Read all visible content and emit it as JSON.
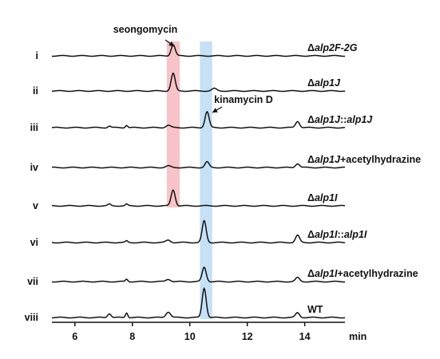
{
  "chart_data": {
    "type": "line",
    "xlabel": "min",
    "xlim": [
      5.2,
      15.4
    ],
    "xticks": [
      6,
      8,
      10,
      12,
      14
    ],
    "highlight_bands": [
      {
        "compound": "seongomycin",
        "x_range": [
          9.2,
          9.65
        ],
        "color": "#f7b8be"
      },
      {
        "compound": "kinamycin D",
        "x_range": [
          10.35,
          10.78
        ],
        "color": "#bcdcf5"
      }
    ],
    "annotations": [
      {
        "text": "seongomycin",
        "points_to_x": 9.42,
        "trace": "i"
      },
      {
        "text": "kinamycin D",
        "points_to_x": 10.6,
        "trace": "iii"
      }
    ],
    "series": [
      {
        "id": "i",
        "label": {
          "prefix": "Δ",
          "italic": "alp2F-2G",
          "suffix": ""
        },
        "peaks": [
          {
            "x": 9.42,
            "h": 14,
            "w": 0.07
          }
        ]
      },
      {
        "id": "ii",
        "label": {
          "prefix": "Δ",
          "italic": "alp1J",
          "suffix": ""
        },
        "peaks": [
          {
            "x": 9.42,
            "h": 22,
            "w": 0.07
          },
          {
            "x": 10.85,
            "h": 3,
            "w": 0.08
          }
        ]
      },
      {
        "id": "iii",
        "label": {
          "prefix": "Δ",
          "italic": "alp1J",
          "suffix": "::",
          "italic2": "alp1J"
        },
        "peaks": [
          {
            "x": 7.2,
            "h": 2,
            "w": 0.05
          },
          {
            "x": 7.8,
            "h": 3,
            "w": 0.04
          },
          {
            "x": 9.25,
            "h": 3,
            "w": 0.08
          },
          {
            "x": 10.6,
            "h": 20,
            "w": 0.07
          },
          {
            "x": 13.75,
            "h": 8,
            "w": 0.07
          }
        ]
      },
      {
        "id": "iv",
        "label": {
          "prefix": "Δ",
          "italic": "alp1J",
          "suffix": "+acetylhydrazine"
        },
        "peaks": [
          {
            "x": 9.25,
            "h": 2,
            "w": 0.08
          },
          {
            "x": 10.6,
            "h": 7,
            "w": 0.07
          },
          {
            "x": 13.75,
            "h": 5,
            "w": 0.07
          }
        ]
      },
      {
        "id": "v",
        "label": {
          "prefix": "Δ",
          "italic": "alp1I",
          "suffix": ""
        },
        "peaks": [
          {
            "x": 7.2,
            "h": 2,
            "w": 0.05
          },
          {
            "x": 7.8,
            "h": 2,
            "w": 0.04
          },
          {
            "x": 9.42,
            "h": 20,
            "w": 0.07
          }
        ]
      },
      {
        "id": "vi",
        "label": {
          "prefix": "Δ",
          "italic": "alp1I",
          "suffix": "::",
          "italic2": "alp1I"
        },
        "peaks": [
          {
            "x": 7.8,
            "h": 2,
            "w": 0.04
          },
          {
            "x": 9.25,
            "h": 3,
            "w": 0.08
          },
          {
            "x": 10.5,
            "h": 27,
            "w": 0.07
          },
          {
            "x": 13.75,
            "h": 9,
            "w": 0.07
          }
        ]
      },
      {
        "id": "vii",
        "label": {
          "prefix": "Δ",
          "italic": "alp1I",
          "suffix": "+acetylhydrazine"
        },
        "peaks": [
          {
            "x": 7.8,
            "h": 3,
            "w": 0.04
          },
          {
            "x": 9.25,
            "h": 3,
            "w": 0.08
          },
          {
            "x": 10.5,
            "h": 18,
            "w": 0.07
          },
          {
            "x": 13.75,
            "h": 5,
            "w": 0.07
          }
        ]
      },
      {
        "id": "viii",
        "label": {
          "prefix": "",
          "italic": "",
          "suffix": "WT"
        },
        "peaks": [
          {
            "x": 7.2,
            "h": 5,
            "w": 0.06
          },
          {
            "x": 7.8,
            "h": 6,
            "w": 0.04
          },
          {
            "x": 9.25,
            "h": 7,
            "w": 0.08
          },
          {
            "x": 10.5,
            "h": 37,
            "w": 0.07
          },
          {
            "x": 13.75,
            "h": 6,
            "w": 0.07
          }
        ]
      }
    ]
  },
  "colors": {
    "trace": "#111111",
    "axis": "#111111"
  }
}
